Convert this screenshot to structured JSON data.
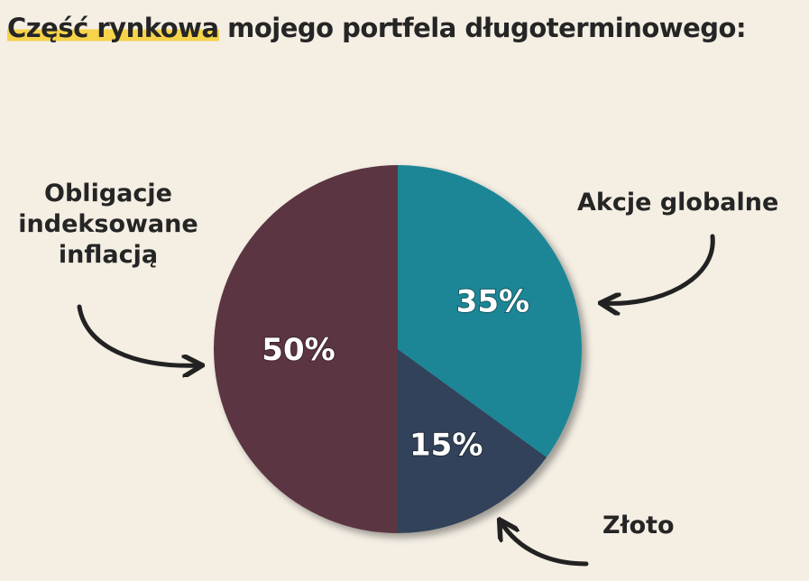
{
  "title": {
    "highlight": "Część rynkowa",
    "rest": " mojego portfela długoterminowego:"
  },
  "colors": {
    "background": "#f4eee3",
    "highlight": "#f6d34a"
  },
  "chart_data": {
    "type": "pie",
    "slices": [
      {
        "label": "Akcje globalne",
        "value": 35,
        "display": "35%",
        "color": "#1b8696"
      },
      {
        "label": "Złoto",
        "value": 15,
        "display": "15%",
        "color": "#33435a"
      },
      {
        "label": "Obligacje indeksowane inflacją",
        "value": 50,
        "display": "50%",
        "color": "#5c3542"
      }
    ]
  },
  "labels": {
    "akcje": "Akcje globalne",
    "zloto": "Złoto",
    "obligacje_1": "Obligacje",
    "obligacje_2": "indeksowane",
    "obligacje_3": "inflacją"
  }
}
